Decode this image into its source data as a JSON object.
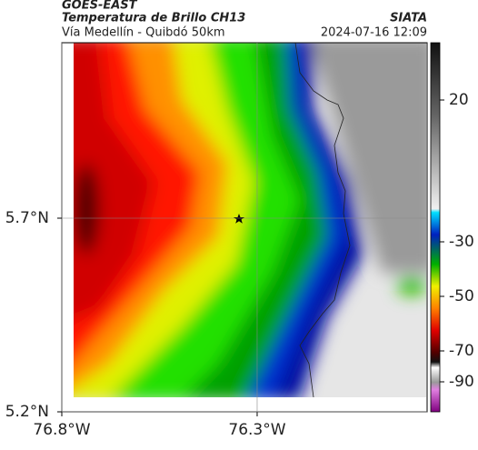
{
  "header": {
    "source": "GOES-EAST",
    "product": "Temperatura de Brillo CH13",
    "route": "Vía Medellín - Quibdó 50km",
    "agency": "SIATA",
    "timestamp": "2024-07-16 12:09"
  },
  "map": {
    "lonlim": [
      -76.8,
      -75.865
    ],
    "latlim": [
      5.2,
      6.153
    ],
    "lon_ticks": [
      {
        "value": -76.8,
        "label": "76.8°W"
      },
      {
        "value": -76.3,
        "label": "76.3°W"
      }
    ],
    "lat_ticks": [
      {
        "value": 5.2,
        "label": "5.2°N"
      },
      {
        "value": 5.7,
        "label": "5.7°N"
      }
    ],
    "colorbar_ticks": [
      20,
      -30,
      -50,
      -70,
      -90
    ]
  }
}
